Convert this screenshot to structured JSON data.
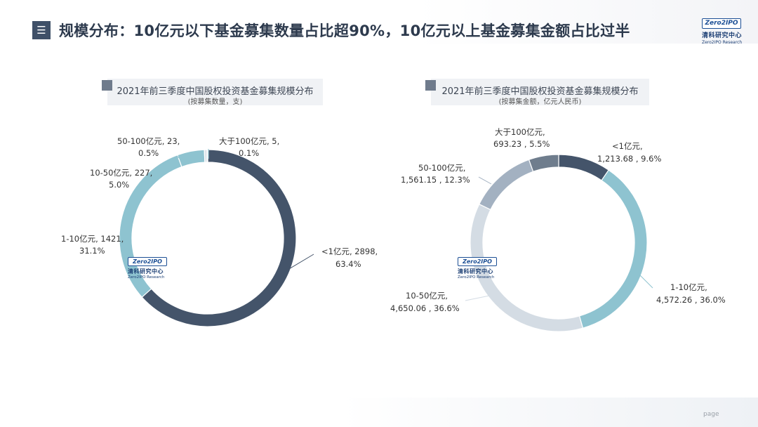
{
  "header": {
    "menu_icon_glyph": "☰",
    "title": "规模分布：10亿元以下基金募集数量占比超90%，10亿元以上基金募集金额占比过半"
  },
  "logo": {
    "badge": "Zero2IPO",
    "cn": "清科研究中心",
    "en": "Zero2IPO Research"
  },
  "watermark": {
    "badge": "Zero2IPO",
    "cn": "清科研究中心",
    "en": "Zero2IPO Research"
  },
  "footer": {
    "page": "page"
  },
  "colors": {
    "dark": "#44546a",
    "light_blue": "#8ec3d0",
    "pale": "#d4dce4",
    "grey_blue": "#a3b1c1",
    "grey": "#6f7d8d",
    "very_pale": "#dde3e9"
  },
  "chart_data": [
    {
      "type": "pie",
      "donut": true,
      "title": "2021年前三季度中国股权投资基金募集规模分布",
      "subtitle": "(按募集数量，支)",
      "slices": [
        {
          "category": "<1亿元",
          "value": 2898,
          "percent": "63.4%",
          "value_text": "2898",
          "color": "#44546a"
        },
        {
          "category": "1-10亿元",
          "value": 1421,
          "percent": "31.1%",
          "value_text": "1421",
          "color": "#8ec3d0"
        },
        {
          "category": "10-50亿元",
          "value": 227,
          "percent": "5.0%",
          "value_text": "227",
          "color": "#8ec3d0"
        },
        {
          "category": "50-100亿元",
          "value": 23,
          "percent": "0.5%",
          "value_text": "23",
          "color": "#dde3e9"
        },
        {
          "category": "大于100亿元",
          "value": 5,
          "percent": "0.1%",
          "value_text": "5",
          "color": "#6f7d8d"
        }
      ]
    },
    {
      "type": "pie",
      "donut": true,
      "title": "2021年前三季度中国股权投资基金募集规模分布",
      "subtitle": "(按募集金额，亿元人民币)",
      "slices": [
        {
          "category": "<1亿元",
          "value": 1213.68,
          "percent": "9.6%",
          "value_text": "1,213.68",
          "color": "#44546a"
        },
        {
          "category": "1-10亿元",
          "value": 4572.26,
          "percent": "36.0%",
          "value_text": "4,572.26",
          "color": "#8ec3d0"
        },
        {
          "category": "10-50亿元",
          "value": 4650.06,
          "percent": "36.6%",
          "value_text": "4,650.06",
          "color": "#d4dce4"
        },
        {
          "category": "50-100亿元",
          "value": 1561.15,
          "percent": "12.3%",
          "value_text": "1,561.15",
          "color": "#a3b1c1"
        },
        {
          "category": "大于100亿元",
          "value": 693.23,
          "percent": "5.5%",
          "value_text": "693.23",
          "color": "#6f7d8d"
        }
      ]
    }
  ],
  "labels": {
    "c1": [
      {
        "l1": "<1亿元, 2898,",
        "l2": "63.4%"
      },
      {
        "l1": "1-10亿元, 1421,",
        "l2": "31.1%"
      },
      {
        "l1": "10-50亿元, 227,",
        "l2": "5.0%"
      },
      {
        "l1": "50-100亿元, 23,",
        "l2": "0.5%"
      },
      {
        "l1": "大于100亿元, 5,",
        "l2": "0.1%"
      }
    ],
    "c2": [
      {
        "l1": "<1亿元,",
        "l2": "1,213.68 , 9.6%"
      },
      {
        "l1": "1-10亿元,",
        "l2": "4,572.26 , 36.0%"
      },
      {
        "l1": "10-50亿元,",
        "l2": "4,650.06 , 36.6%"
      },
      {
        "l1": "50-100亿元,",
        "l2": "1,561.15 , 12.3%"
      },
      {
        "l1": "大于100亿元,",
        "l2": "693.23 , 5.5%"
      }
    ]
  }
}
